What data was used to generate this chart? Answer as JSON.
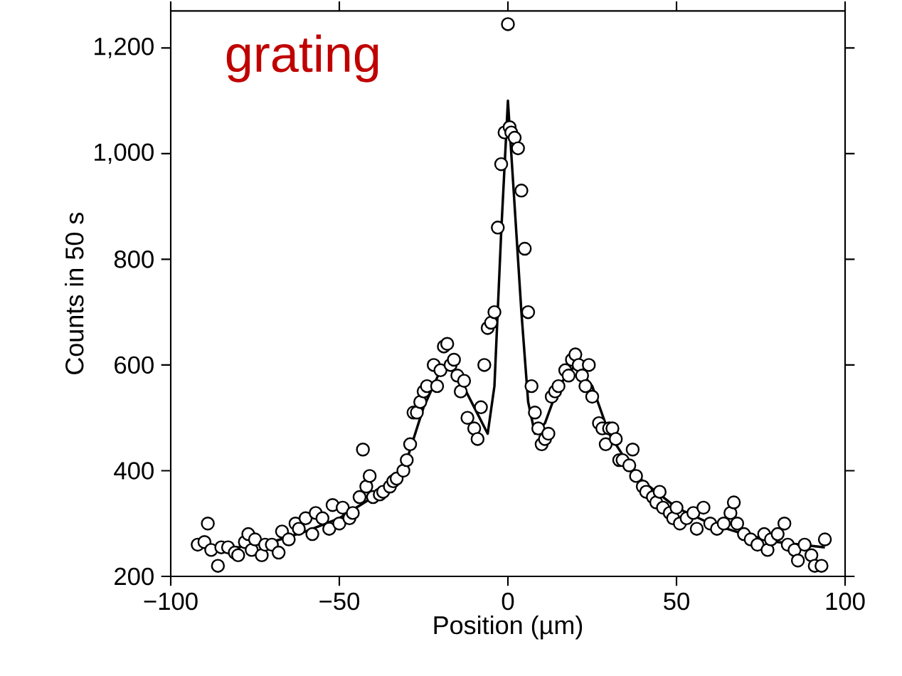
{
  "chart_data": {
    "type": "scatter",
    "title": "grating",
    "xlabel": "Position (µm)",
    "ylabel": "Counts in 50 s",
    "xlim": [
      -100,
      100
    ],
    "ylim": [
      200,
      1270
    ],
    "xticks": [
      {
        "value": -100,
        "label": "−100"
      },
      {
        "value": -50,
        "label": "−50"
      },
      0,
      50,
      100
    ],
    "yticks": [
      200,
      400,
      600,
      800,
      {
        "value": 1000,
        "label": "1,000"
      },
      {
        "value": 1200,
        "label": "1,200"
      }
    ],
    "grid": false,
    "series": [
      {
        "color": "#000000",
        "marker": "circle",
        "x": [
          -92,
          -90,
          -89,
          -88,
          -86,
          -85,
          -83,
          -81,
          -80,
          -78,
          -77,
          -76,
          -75,
          -73,
          -72,
          -70,
          -68,
          -67,
          -65,
          -63,
          -62,
          -60,
          -58,
          -57,
          -55,
          -53,
          -52,
          -50,
          -49,
          -47,
          -46,
          -44,
          -43,
          -42,
          -41,
          -40,
          -38,
          -37,
          -35,
          -34,
          -33,
          -31,
          -30,
          -29,
          -28,
          -27,
          -26,
          -25,
          -24,
          -22,
          -21,
          -20,
          -19,
          -18,
          -17,
          -16,
          -15,
          -14,
          -13,
          -12,
          -10,
          -9,
          -8,
          -7,
          -6,
          -5,
          -4,
          -3,
          -2,
          -1,
          0,
          0.5,
          1,
          2,
          3,
          4,
          5,
          6,
          7,
          8,
          9,
          10,
          11,
          12,
          13,
          14,
          15,
          17,
          18,
          19,
          20,
          21,
          22,
          23,
          24,
          25,
          27,
          28,
          29,
          30,
          31,
          32,
          33,
          34,
          36,
          37,
          38,
          40,
          41,
          43,
          44,
          45,
          46,
          48,
          49,
          50,
          51,
          53,
          55,
          56,
          58,
          60,
          62,
          64,
          66,
          67,
          68,
          70,
          72,
          74,
          76,
          77,
          78,
          80,
          82,
          83,
          85,
          86,
          88,
          90,
          91,
          93,
          94
        ],
        "values": [
          260,
          265,
          300,
          250,
          220,
          255,
          255,
          245,
          240,
          265,
          280,
          250,
          270,
          240,
          260,
          260,
          245,
          285,
          270,
          300,
          290,
          310,
          280,
          320,
          310,
          290,
          335,
          300,
          330,
          310,
          320,
          350,
          440,
          370,
          390,
          350,
          355,
          360,
          370,
          380,
          385,
          400,
          420,
          450,
          510,
          510,
          530,
          550,
          560,
          600,
          560,
          590,
          635,
          640,
          600,
          610,
          580,
          550,
          570,
          500,
          480,
          460,
          520,
          600,
          670,
          680,
          700,
          860,
          980,
          1040,
          1245,
          1050,
          1040,
          1030,
          1010,
          930,
          820,
          700,
          560,
          510,
          480,
          450,
          460,
          470,
          540,
          550,
          560,
          590,
          580,
          610,
          620,
          600,
          580,
          560,
          600,
          540,
          490,
          480,
          450,
          480,
          480,
          460,
          420,
          420,
          410,
          440,
          390,
          370,
          360,
          350,
          340,
          360,
          330,
          320,
          310,
          330,
          300,
          310,
          320,
          290,
          330,
          300,
          290,
          300,
          320,
          340,
          300,
          280,
          270,
          260,
          280,
          250,
          270,
          280,
          300,
          260,
          250,
          230,
          260,
          240,
          220,
          220,
          270
        ]
      },
      {
        "type": "line",
        "color": "#000000",
        "marker": "none",
        "line_style": "solid",
        "x": [
          -92,
          -80,
          -70,
          -60,
          -50,
          -40,
          -35,
          -30,
          -25,
          -20,
          -17,
          -14,
          -10,
          -6,
          -4,
          -2,
          0,
          2,
          4,
          6,
          8,
          11,
          15,
          20,
          25,
          30,
          35,
          40,
          50,
          60,
          70,
          80,
          94
        ],
        "values": [
          255,
          255,
          265,
          285,
          310,
          350,
          375,
          420,
          520,
          590,
          600,
          570,
          520,
          470,
          560,
          850,
          1100,
          900,
          700,
          530,
          470,
          490,
          560,
          600,
          560,
          470,
          420,
          380,
          330,
          300,
          280,
          265,
          255
        ]
      }
    ]
  }
}
